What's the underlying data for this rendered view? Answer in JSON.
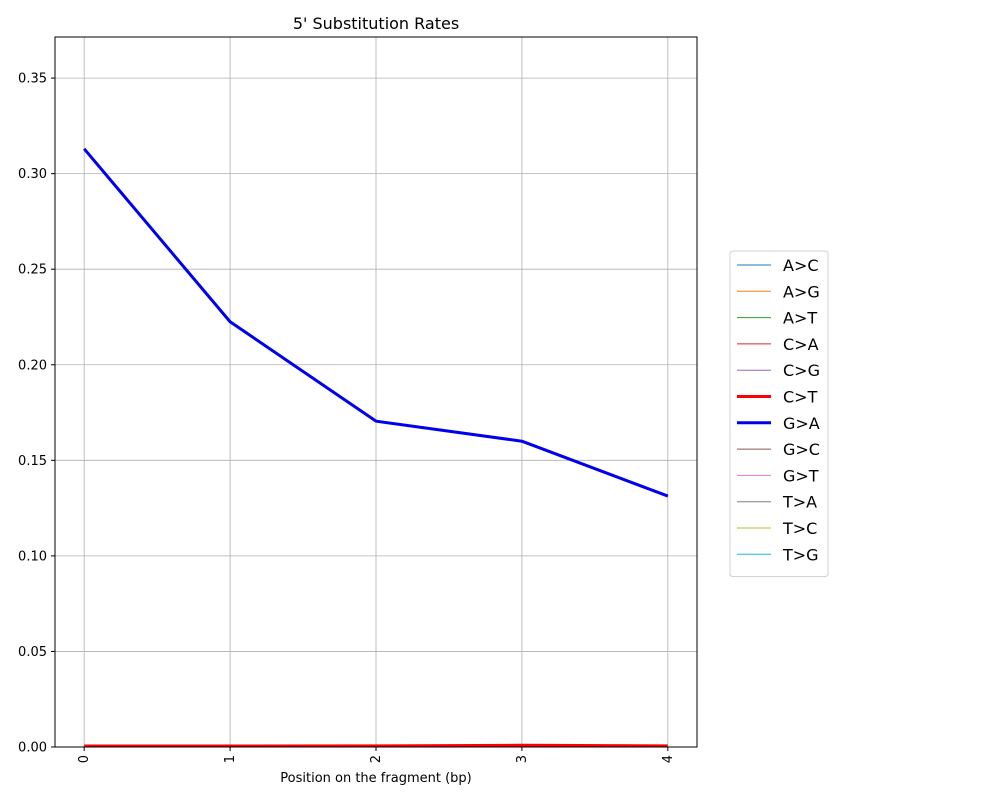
{
  "chart_data": {
    "type": "line",
    "title": "5' Substitution Rates",
    "xlabel": "Position on the fragment (bp)",
    "ylabel": "",
    "x": [
      0,
      1,
      2,
      3,
      4
    ],
    "x_tick_labels": [
      "0",
      "1",
      "2",
      "3",
      "4"
    ],
    "xlim": [
      -0.2,
      4.2
    ],
    "ylim": [
      0,
      0.3715
    ],
    "y_ticks": [
      0.0,
      0.05,
      0.1,
      0.15,
      0.2,
      0.25,
      0.3,
      0.35
    ],
    "y_tick_labels": [
      "0.00",
      "0.05",
      "0.10",
      "0.15",
      "0.20",
      "0.25",
      "0.30",
      "0.35"
    ],
    "grid": true,
    "legend_position": "right",
    "series": [
      {
        "name": "A>C",
        "color": "#1f77b4",
        "values": [
          0.0003,
          0.0003,
          0.0003,
          0.0003,
          0.0003
        ],
        "emphasis": false
      },
      {
        "name": "A>G",
        "color": "#ff7f0e",
        "values": [
          0.0005,
          0.0005,
          0.0005,
          0.0006,
          0.0005
        ],
        "emphasis": false
      },
      {
        "name": "A>T",
        "color": "#2ca02c",
        "values": [
          0.0002,
          0.0002,
          0.0002,
          0.0002,
          0.0002
        ],
        "emphasis": false
      },
      {
        "name": "C>A",
        "color": "#d62728",
        "values": [
          0.0003,
          0.0003,
          0.0003,
          0.0003,
          0.0003
        ],
        "emphasis": false
      },
      {
        "name": "C>G",
        "color": "#9467bd",
        "values": [
          0.0002,
          0.0002,
          0.0002,
          0.0002,
          0.0002
        ],
        "emphasis": false
      },
      {
        "name": "C>T",
        "color": "#ff0000",
        "values": [
          0.0005,
          0.0005,
          0.0006,
          0.0009,
          0.0006
        ],
        "emphasis": true
      },
      {
        "name": "G>A",
        "color": "#0000ee",
        "values": [
          0.313,
          0.2225,
          0.1705,
          0.16,
          0.1313
        ],
        "emphasis": true
      },
      {
        "name": "G>C",
        "color": "#8c564b",
        "values": [
          0.0002,
          0.0002,
          0.0002,
          0.0002,
          0.0002
        ],
        "emphasis": false
      },
      {
        "name": "G>T",
        "color": "#e377c2",
        "values": [
          0.0003,
          0.0003,
          0.0003,
          0.0003,
          0.0003
        ],
        "emphasis": false
      },
      {
        "name": "T>A",
        "color": "#7f7f7f",
        "values": [
          0.0002,
          0.0002,
          0.0002,
          0.0002,
          0.0002
        ],
        "emphasis": false
      },
      {
        "name": "T>C",
        "color": "#bcbd22",
        "values": [
          0.0005,
          0.0005,
          0.0005,
          0.0005,
          0.0005
        ],
        "emphasis": false
      },
      {
        "name": "T>G",
        "color": "#17becf",
        "values": [
          0.0002,
          0.0002,
          0.0002,
          0.0002,
          0.0002
        ],
        "emphasis": false
      }
    ]
  }
}
